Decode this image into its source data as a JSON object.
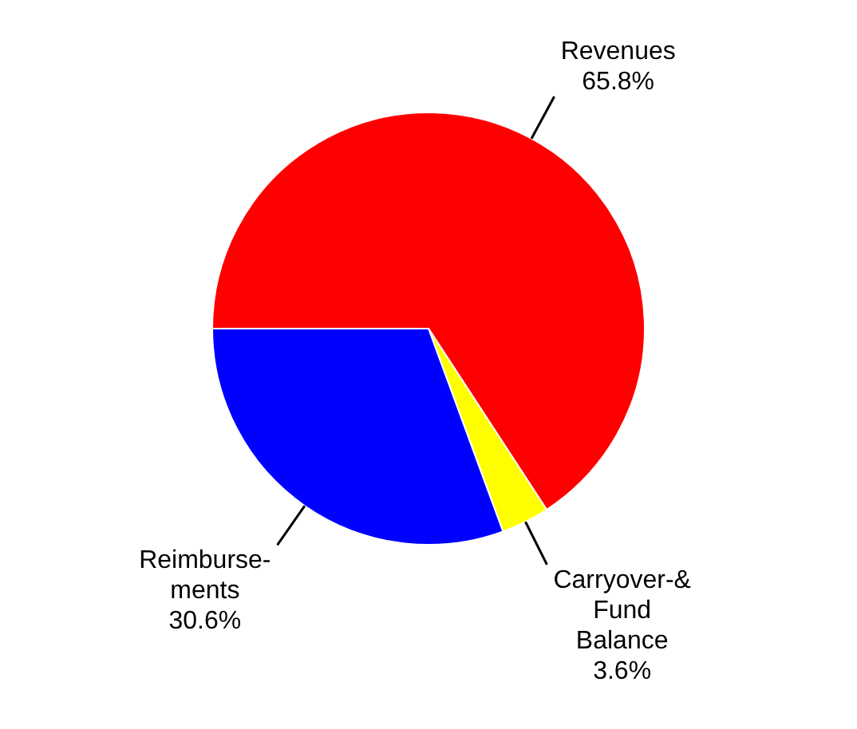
{
  "chart_data": {
    "type": "pie",
    "categories": [
      "Revenues",
      "Carryover-&\nFund\nBalance",
      "Reimburse-\nments"
    ],
    "values": [
      65.8,
      3.6,
      30.6
    ],
    "colors": [
      "#ff0000",
      "#ffff00",
      "#0000ff"
    ],
    "value_labels": [
      "65.8%",
      "3.6%",
      "30.6%"
    ],
    "legend": false
  }
}
